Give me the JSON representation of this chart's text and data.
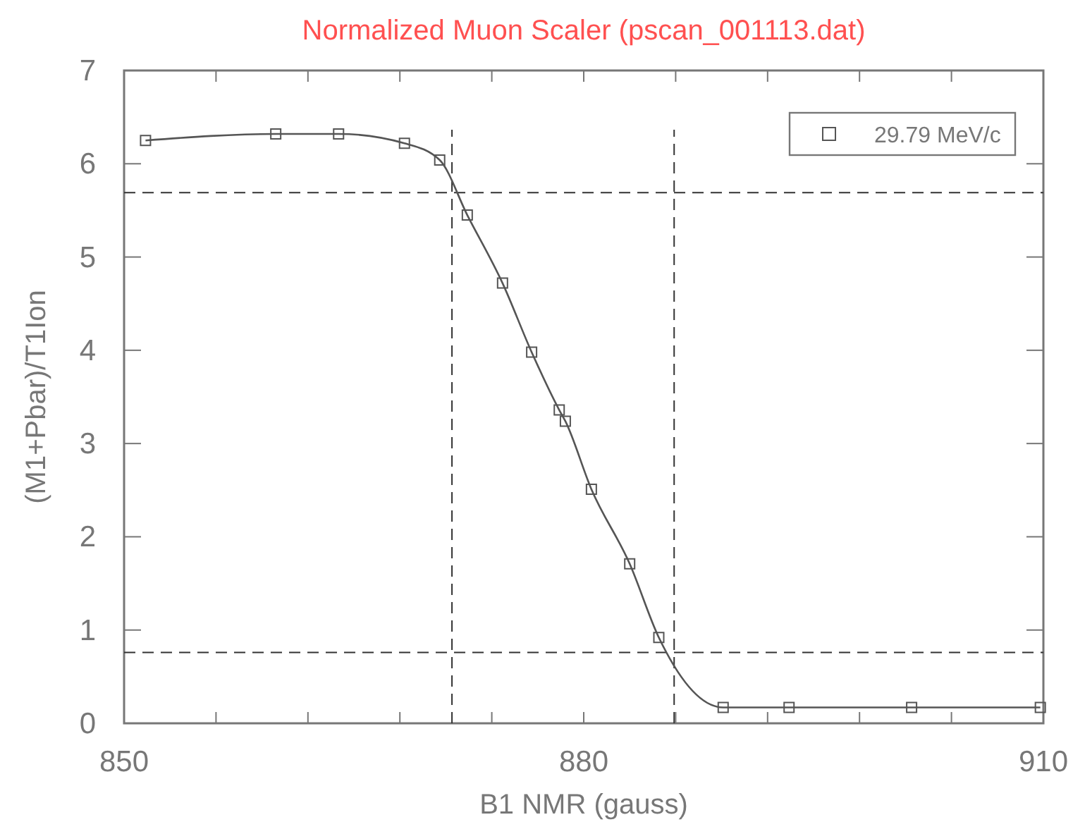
{
  "chart_data": {
    "type": "line",
    "title": "Normalized Muon Scaler (pscan_001113.dat)",
    "xlabel": "B1 NMR (gauss)",
    "ylabel": "(M1+Pbar)/T1Ion",
    "x": [
      851.4,
      859.9,
      864.0,
      868.3,
      870.6,
      872.4,
      874.7,
      876.6,
      878.4,
      878.8,
      880.5,
      883.0,
      884.9,
      889.1,
      893.4,
      901.4,
      909.8
    ],
    "series": [
      {
        "name": "29.79 MeV/c",
        "color": "#555555",
        "values": [
          6.25,
          6.32,
          6.32,
          6.22,
          6.04,
          5.45,
          4.72,
          3.98,
          3.36,
          3.24,
          2.51,
          1.71,
          0.92,
          0.17,
          0.17,
          0.17,
          0.17
        ]
      }
    ],
    "marker": "square",
    "line_style": "solid",
    "legend": "top right",
    "grid": false,
    "xlim": [
      850,
      910
    ],
    "xticks": [
      850,
      {
        "value": 856,
        "label": null
      },
      {
        "value": 862,
        "label": null
      },
      {
        "value": 868,
        "label": null
      },
      {
        "value": 874,
        "label": null
      },
      880,
      {
        "value": 886,
        "label": null
      },
      {
        "value": 892,
        "label": null
      },
      {
        "value": 898,
        "label": null
      },
      {
        "value": 904,
        "label": null
      },
      910
    ],
    "ylim": [
      0,
      7
    ],
    "yticks": [
      0,
      1,
      2,
      3,
      4,
      5,
      6,
      7
    ],
    "ref_lines": [
      {
        "axis": "x",
        "value": 871.4,
        "line_style": "dashed",
        "color": "#333333"
      },
      {
        "axis": "x",
        "value": 885.9,
        "line_style": "dashed",
        "color": "#333333"
      },
      {
        "axis": "y",
        "value": 5.69,
        "line_style": "dashed",
        "color": "#333333"
      },
      {
        "axis": "y",
        "value": 0.76,
        "line_style": "dashed",
        "color": "#333333"
      }
    ]
  }
}
